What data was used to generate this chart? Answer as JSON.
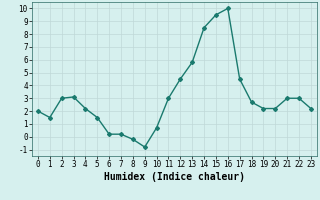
{
  "x": [
    0,
    1,
    2,
    3,
    4,
    5,
    6,
    7,
    8,
    9,
    10,
    11,
    12,
    13,
    14,
    15,
    16,
    17,
    18,
    19,
    20,
    21,
    22,
    23
  ],
  "y": [
    2.0,
    1.5,
    3.0,
    3.1,
    2.2,
    1.5,
    0.2,
    0.2,
    -0.2,
    -0.8,
    0.7,
    3.0,
    4.5,
    5.8,
    8.5,
    9.5,
    10.0,
    4.5,
    2.7,
    2.2,
    2.2,
    3.0,
    3.0,
    2.2
  ],
  "line_color": "#1a7a6e",
  "marker": "D",
  "marker_size": 2.0,
  "linewidth": 1.0,
  "xlabel": "Humidex (Indice chaleur)",
  "xlim": [
    -0.5,
    23.5
  ],
  "ylim": [
    -1.5,
    10.5
  ],
  "yticks": [
    -1,
    0,
    1,
    2,
    3,
    4,
    5,
    6,
    7,
    8,
    9,
    10
  ],
  "xticks": [
    0,
    1,
    2,
    3,
    4,
    5,
    6,
    7,
    8,
    9,
    10,
    11,
    12,
    13,
    14,
    15,
    16,
    17,
    18,
    19,
    20,
    21,
    22,
    23
  ],
  "bg_color": "#d6f0ee",
  "grid_color": "#c0d8d8",
  "tick_fontsize": 5.5,
  "xlabel_fontsize": 7.0
}
